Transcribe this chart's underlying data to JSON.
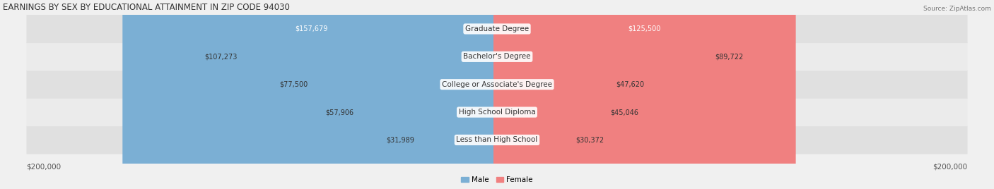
{
  "title": "EARNINGS BY SEX BY EDUCATIONAL ATTAINMENT IN ZIP CODE 94030",
  "source": "Source: ZipAtlas.com",
  "categories": [
    "Less than High School",
    "High School Diploma",
    "College or Associate's Degree",
    "Bachelor's Degree",
    "Graduate Degree"
  ],
  "male_values": [
    31989,
    57906,
    77500,
    107273,
    157679
  ],
  "female_values": [
    30372,
    45046,
    47620,
    89722,
    125500
  ],
  "male_color": "#7bafd4",
  "female_color": "#f08080",
  "male_label": "Male",
  "female_label": "Female",
  "axis_max": 200000,
  "bg_color": "#f0f0f0",
  "row_bg_light": "#e8e8e8",
  "row_bg_dark": "#d8d8d8",
  "label_fontsize": 7.5,
  "title_fontsize": 8.5,
  "value_fontsize": 7.0,
  "category_fontsize": 7.5
}
